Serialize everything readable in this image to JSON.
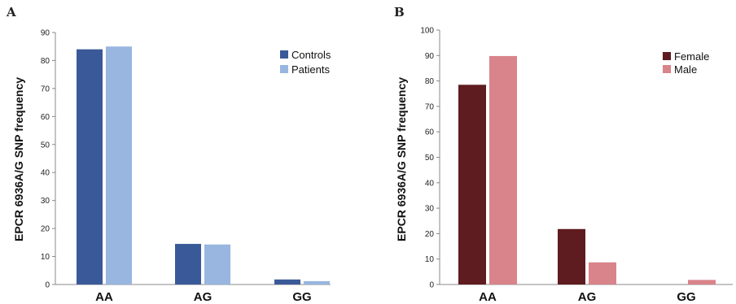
{
  "chart_data": [
    {
      "panel": "A",
      "type": "bar",
      "categories": [
        "AA",
        "AG",
        "GG"
      ],
      "ylabel": "EPCR 6936A/G SNP frequency",
      "ylim": [
        0,
        90
      ],
      "yticks": [
        0,
        10,
        20,
        30,
        40,
        50,
        60,
        70,
        80,
        90
      ],
      "legend_position": "top-right",
      "series": [
        {
          "name": "Controls",
          "color": "#3a5998",
          "values": [
            84,
            14.5,
            1.8
          ]
        },
        {
          "name": "Patients",
          "color": "#98b6df",
          "values": [
            85,
            14.3,
            1.2
          ]
        }
      ]
    },
    {
      "panel": "B",
      "type": "bar",
      "categories": [
        "AA",
        "AG",
        "GG"
      ],
      "ylabel": "EPCR 6936A/G SNP frequency",
      "ylim": [
        0,
        100
      ],
      "yticks": [
        0,
        10,
        20,
        30,
        40,
        50,
        60,
        70,
        80,
        90,
        100
      ],
      "legend_position": "top-right",
      "series": [
        {
          "name": "Female",
          "color": "#5e1b20",
          "values": [
            78.5,
            21.8,
            0
          ]
        },
        {
          "name": "Male",
          "color": "#d9838a",
          "values": [
            89.8,
            8.7,
            1.8
          ]
        }
      ]
    }
  ]
}
